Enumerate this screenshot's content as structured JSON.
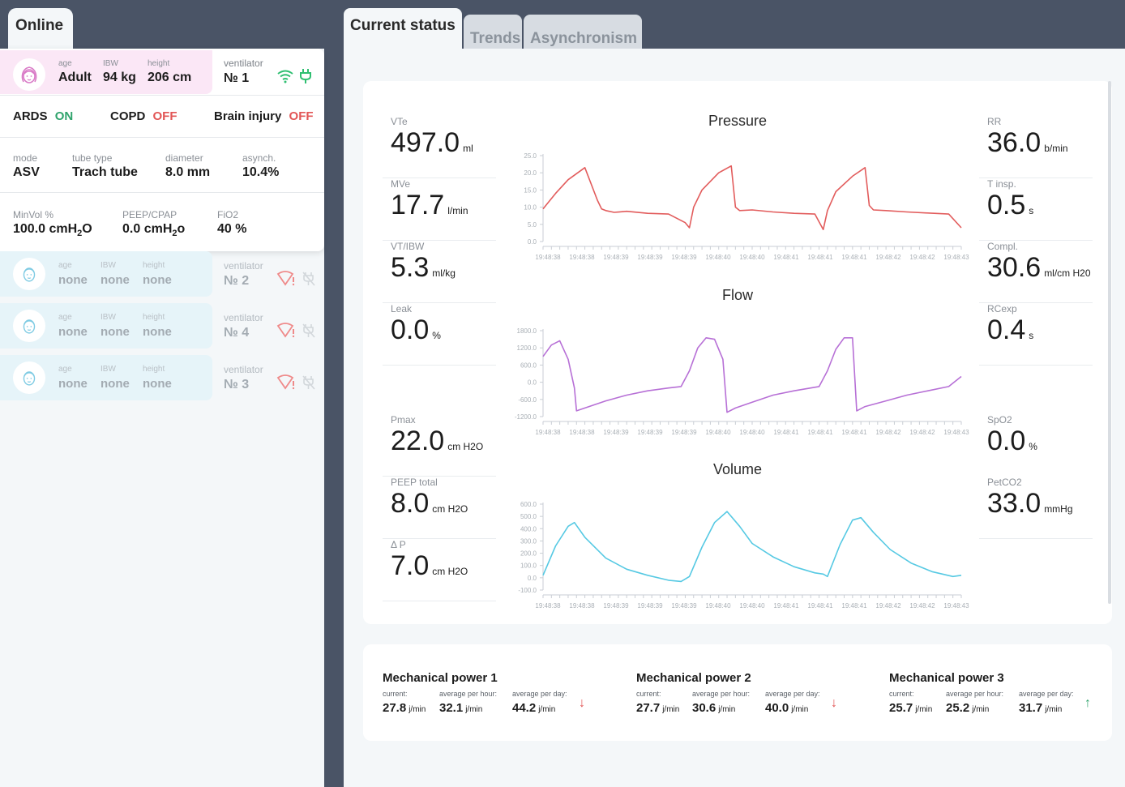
{
  "left": {
    "tab_label": "Online",
    "patient": {
      "age_label": "age",
      "age": "Adult",
      "ibw_label": "IBW",
      "ibw": "94 kg",
      "height_label": "height",
      "height": "206 cm",
      "ventilator_label": "ventilator",
      "ventilator": "№ 1",
      "conditions": [
        {
          "name": "ARDS",
          "state": "ON"
        },
        {
          "name": "COPD",
          "state": "OFF"
        },
        {
          "name": "Brain injury",
          "state": "OFF"
        }
      ],
      "mode_label": "mode",
      "mode": "ASV",
      "tube_label": "tube type",
      "tube": "Trach tube",
      "diameter_label": "diameter",
      "diameter": "8.0 mm",
      "asynch_label": "asynch.",
      "asynch": "10.4%",
      "minvol_label": "MinVol %",
      "minvol": "100.0 cmH",
      "minvol_unit_sub": "2",
      "minvol_unit_tail": "O",
      "peep_label": "PEEP/CPAP",
      "peep": "0.0 cmH",
      "peep_unit_sub": "2",
      "peep_unit_tail": "o",
      "fio2_label": "FiO2",
      "fio2": "40 %"
    },
    "others": [
      {
        "age_label": "age",
        "age": "none",
        "ibw_label": "IBW",
        "ibw": "none",
        "height_label": "height",
        "height": "none",
        "ventilator_label": "ventilator",
        "ventilator": "№ 2"
      },
      {
        "age_label": "age",
        "age": "none",
        "ibw_label": "IBW",
        "ibw": "none",
        "height_label": "height",
        "height": "none",
        "ventilator_label": "ventilator",
        "ventilator": "№ 4"
      },
      {
        "age_label": "age",
        "age": "none",
        "ibw_label": "IBW",
        "ibw": "none",
        "height_label": "height",
        "height": "none",
        "ventilator_label": "ventilator",
        "ventilator": "№ 3"
      }
    ],
    "icons": {
      "wifi": "wifi-icon",
      "plug": "plug-icon",
      "wifi_alert": "wifi-alert-icon",
      "plug_off": "plug-off-icon"
    }
  },
  "tabs": [
    {
      "label": "Current status"
    },
    {
      "label": "Trends"
    },
    {
      "label": "Asynchronism"
    }
  ],
  "metrics_left": [
    {
      "label": "VTe",
      "value": "497.0",
      "unit": "ml"
    },
    {
      "label": "MVe",
      "value": "17.7",
      "unit": "l/min"
    },
    {
      "label": "VT/IBW",
      "value": "5.3",
      "unit": "ml/kg"
    },
    {
      "label": "Leak",
      "value": "0.0",
      "unit": "%"
    },
    {
      "label": "Pmax",
      "value": "22.0",
      "unit": "cm H2O"
    },
    {
      "label": "PEEP total",
      "value": "8.0",
      "unit": "cm H2O"
    },
    {
      "label": "Δ P",
      "value": "7.0",
      "unit": "cm H2O"
    }
  ],
  "metrics_right": [
    {
      "label": "RR",
      "value": "36.0",
      "unit": "b/min"
    },
    {
      "label": "T insp.",
      "value": "0.5",
      "unit": "s"
    },
    {
      "label": "Compl.",
      "value": "30.6",
      "unit": "ml/cm H20"
    },
    {
      "label": "RCexp",
      "value": "0.4",
      "unit": "s"
    },
    {
      "label": "SpO2",
      "value": "0.0",
      "unit": "%"
    },
    {
      "label": "PetCO2",
      "value": "33.0",
      "unit": "mmHg"
    }
  ],
  "chart_data": [
    {
      "type": "line",
      "title": "Pressure",
      "color": "#e25c5c",
      "yticks": [
        "25.0",
        "20.0",
        "15.0",
        "10.0",
        "5.0",
        "0.0"
      ],
      "ylim": [
        0,
        25
      ],
      "xticks": [
        "19:48:38",
        "19:48:38",
        "19:48:39",
        "19:48:39",
        "19:48:39",
        "19:48:40",
        "19:48:40",
        "19:48:41",
        "19:48:41",
        "19:48:41",
        "19:48:42",
        "19:48:42",
        "19:48:43"
      ],
      "x": [
        0,
        0.03,
        0.06,
        0.1,
        0.13,
        0.14,
        0.15,
        0.17,
        0.2,
        0.25,
        0.3,
        0.34,
        0.35,
        0.36,
        0.38,
        0.42,
        0.45,
        0.46,
        0.47,
        0.5,
        0.55,
        0.6,
        0.65,
        0.67,
        0.68,
        0.7,
        0.74,
        0.77,
        0.78,
        0.79,
        0.82,
        0.87,
        0.92,
        0.97,
        1.0
      ],
      "y": [
        9.5,
        14,
        18,
        21.5,
        12,
        9.5,
        9,
        8.5,
        8.8,
        8.2,
        8,
        5.5,
        4,
        10,
        15,
        20,
        22,
        10,
        9,
        9.2,
        8.6,
        8.2,
        8,
        3.5,
        9,
        14.5,
        19,
        21.5,
        10.5,
        9.2,
        9,
        8.6,
        8.3,
        8,
        4
      ]
    },
    {
      "type": "line",
      "title": "Flow",
      "color": "#b770d6",
      "yticks": [
        "1800.0",
        "1200.0",
        "600.0",
        "0.0",
        "-600.0",
        "-1200.0"
      ],
      "ylim": [
        -1200,
        1800
      ],
      "xticks": [
        "19:48:38",
        "19:48:38",
        "19:48:39",
        "19:48:39",
        "19:48:39",
        "19:48:40",
        "19:48:40",
        "19:48:41",
        "19:48:41",
        "19:48:41",
        "19:48:42",
        "19:48:42",
        "19:48:43"
      ],
      "x": [
        0,
        0.02,
        0.04,
        0.06,
        0.075,
        0.08,
        0.1,
        0.15,
        0.2,
        0.25,
        0.3,
        0.33,
        0.35,
        0.37,
        0.39,
        0.41,
        0.43,
        0.44,
        0.46,
        0.5,
        0.55,
        0.6,
        0.64,
        0.66,
        0.68,
        0.7,
        0.72,
        0.74,
        0.75,
        0.77,
        0.82,
        0.87,
        0.92,
        0.97,
        1.0
      ],
      "x_note": "",
      "y": [
        900,
        1300,
        1450,
        800,
        -200,
        -1000,
        -900,
        -650,
        -450,
        -300,
        -200,
        -150,
        400,
        1200,
        1550,
        1500,
        800,
        -1050,
        -900,
        -700,
        -450,
        -300,
        -200,
        -150,
        400,
        1150,
        1550,
        1550,
        -1000,
        -850,
        -650,
        -450,
        -300,
        -150,
        200
      ]
    },
    {
      "type": "line",
      "title": "Volume",
      "color": "#56c9e3",
      "yticks": [
        "600.0",
        "500.0",
        "400.0",
        "300.0",
        "200.0",
        "100.0",
        "0.0",
        "-100.0"
      ],
      "ylim": [
        -100,
        600
      ],
      "xticks": [
        "19:48:38",
        "19:48:38",
        "19:48:39",
        "19:48:39",
        "19:48:39",
        "19:48:40",
        "19:48:40",
        "19:48:41",
        "19:48:41",
        "19:48:41",
        "19:48:42",
        "19:48:42",
        "19:48:43"
      ],
      "x": [
        0,
        0.03,
        0.06,
        0.075,
        0.1,
        0.15,
        0.2,
        0.25,
        0.3,
        0.33,
        0.35,
        0.38,
        0.41,
        0.44,
        0.47,
        0.5,
        0.55,
        0.6,
        0.65,
        0.67,
        0.68,
        0.71,
        0.74,
        0.76,
        0.79,
        0.83,
        0.88,
        0.93,
        0.98,
        1.0
      ],
      "y": [
        20,
        260,
        420,
        450,
        330,
        160,
        70,
        20,
        -20,
        -30,
        10,
        250,
        450,
        540,
        420,
        280,
        170,
        90,
        40,
        30,
        10,
        270,
        470,
        490,
        370,
        230,
        120,
        50,
        10,
        20
      ]
    }
  ],
  "power": [
    {
      "title": "Mechanical power 1",
      "current_label": "current:",
      "current": "27.8",
      "hour_label": "average per hour:",
      "hour": "32.1",
      "day_label": "average per day:",
      "day": "44.2",
      "unit": "j/min",
      "trend": "down",
      "trend_color": "#e25555"
    },
    {
      "title": "Mechanical power 2",
      "current_label": "current:",
      "current": "27.7",
      "hour_label": "average per hour:",
      "hour": "30.6",
      "day_label": "average per day:",
      "day": "40.0",
      "unit": "j/min",
      "trend": "down",
      "trend_color": "#e25555"
    },
    {
      "title": "Mechanical power 3",
      "current_label": "current:",
      "current": "25.7",
      "hour_label": "average per hour:",
      "hour": "25.2",
      "day_label": "average per day:",
      "day": "31.7",
      "unit": "j/min",
      "trend": "up",
      "trend_color": "#2fa36c"
    }
  ],
  "colors": {
    "on": "#2fa36c",
    "off": "#e25555",
    "card_pink": "#fbe7f6",
    "card_blue": "#e6f4f9",
    "bg_dark": "#4a5466"
  }
}
